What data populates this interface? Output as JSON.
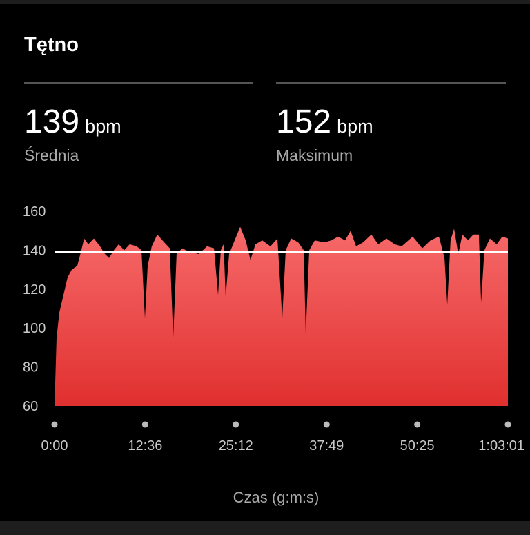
{
  "title": "Tętno",
  "stats": [
    {
      "value": 139,
      "unit": "bpm",
      "label": "Średnia"
    },
    {
      "value": 152,
      "unit": "bpm",
      "label": "Maksimum"
    }
  ],
  "chart_data": {
    "type": "area",
    "color": "#f25c5c",
    "xlabel": "Czas (g:m:s)",
    "x": [
      0,
      17,
      40,
      75,
      109,
      144,
      190,
      224,
      247,
      282,
      328,
      380,
      420,
      455,
      495,
      535,
      581,
      627,
      685,
      725,
      754,
      777,
      811,
      857,
      915,
      961,
      990,
      1018,
      1065,
      1128,
      1203,
      1272,
      1330,
      1364,
      1387,
      1410,
      1427,
      1456,
      1502,
      1548,
      1594,
      1634,
      1675,
      1732,
      1801,
      1859,
      1899,
      1928,
      1974,
      2032,
      2078,
      2095,
      2124,
      2170,
      2250,
      2308,
      2365,
      2423,
      2469,
      2515,
      2573,
      2642,
      2699,
      2768,
      2837,
      2895,
      2987,
      3067,
      3136,
      3206,
      3252,
      3275,
      3303,
      3332,
      3367,
      3401,
      3447,
      3493,
      3539,
      3557,
      3585,
      3631,
      3688,
      3734,
      3781
    ],
    "values": [
      60,
      95,
      108,
      117,
      126,
      130,
      132,
      140,
      146,
      143,
      146,
      142,
      138,
      136,
      140,
      143,
      140,
      143,
      142,
      140,
      105,
      132,
      142,
      148,
      144,
      141,
      95,
      138,
      141,
      139,
      138,
      142,
      141,
      117,
      140,
      143,
      116,
      138,
      145,
      152,
      145,
      135,
      143,
      145,
      142,
      146,
      105,
      140,
      146,
      144,
      140,
      97,
      140,
      145,
      144,
      145,
      147,
      145,
      150,
      142,
      144,
      148,
      143,
      146,
      143,
      142,
      147,
      141,
      145,
      147,
      136,
      112,
      145,
      151,
      138,
      148,
      145,
      148,
      148,
      113,
      140,
      146,
      143,
      147,
      146
    ],
    "xlim": [
      0,
      3781
    ],
    "xticks": [
      {
        "value": 0,
        "label": "0:00"
      },
      {
        "value": 756,
        "label": "12:36"
      },
      {
        "value": 1512,
        "label": "25:12"
      },
      {
        "value": 2269,
        "label": "37:49"
      },
      {
        "value": 3025,
        "label": "50:25"
      },
      {
        "value": 3781,
        "label": "1:03:01"
      }
    ],
    "ylim": [
      60,
      160
    ],
    "yticks": [
      60,
      80,
      100,
      120,
      140,
      160
    ]
  }
}
